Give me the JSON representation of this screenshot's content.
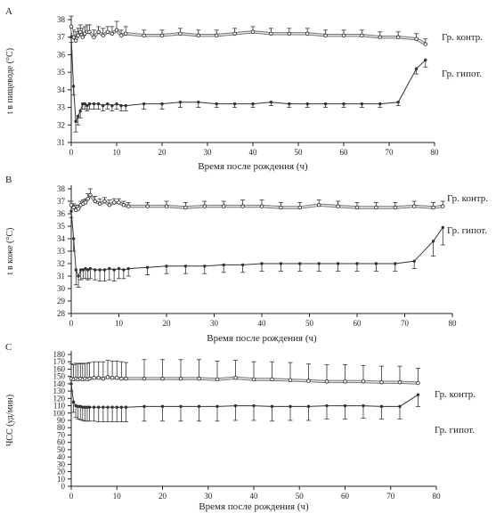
{
  "figure": {
    "panels": [
      {
        "letter": "A",
        "xlabel": "Время после рождения (ч)",
        "ylabel": "t в пищеводе (°С)"
      },
      {
        "letter": "B",
        "xlabel": "Время после рождения (ч)",
        "ylabel": "t в коже (°С)"
      },
      {
        "letter": "C",
        "xlabel": "Время после рождения (ч)",
        "ylabel": "ЧСС (уд/мин)"
      }
    ]
  },
  "colors": {
    "axis": "#222222",
    "hypo_series": "#333333",
    "control_outline": "#777777",
    "control_fill": "#e8e8e8"
  },
  "chart_data": [
    {
      "type": "line",
      "panel": "A",
      "xlabel": "Время после рождения (ч)",
      "ylabel": "t в пищеводе (°С)",
      "xlim": [
        0,
        80
      ],
      "ylim": [
        31,
        38
      ],
      "xticks": [
        0,
        10,
        20,
        30,
        40,
        50,
        60,
        70,
        80
      ],
      "yticks": [
        31,
        32,
        33,
        34,
        35,
        36,
        37,
        38
      ],
      "grid": false,
      "series": [
        {
          "name": "Гр. контр.",
          "style": "open-double",
          "x": [
            0,
            0.5,
            1,
            1.5,
            2,
            2.5,
            3,
            3.5,
            4,
            5,
            6,
            7,
            8,
            9,
            10,
            11,
            12,
            16,
            20,
            24,
            28,
            32,
            36,
            40,
            44,
            48,
            52,
            56,
            60,
            64,
            68,
            72,
            76,
            78
          ],
          "y": [
            37.6,
            37.0,
            36.8,
            37.1,
            37.3,
            37.0,
            37.2,
            37.3,
            37.3,
            37.0,
            37.3,
            37.1,
            37.3,
            37.2,
            37.4,
            37.1,
            37.2,
            37.1,
            37.1,
            37.2,
            37.1,
            37.1,
            37.2,
            37.3,
            37.2,
            37.2,
            37.2,
            37.1,
            37.1,
            37.1,
            37.0,
            37.0,
            36.9,
            36.6
          ],
          "err": [
            0.6,
            0.4,
            0.5,
            0.4,
            0.4,
            0.5,
            0.4,
            0.4,
            0.4,
            0.4,
            0.3,
            0.4,
            0.3,
            0.4,
            0.5,
            0.3,
            0.4,
            0.3,
            0.3,
            0.3,
            0.3,
            0.3,
            0.3,
            0.3,
            0.3,
            0.3,
            0.3,
            0.3,
            0.3,
            0.3,
            0.3,
            0.3,
            0.3,
            0.3
          ]
        },
        {
          "name": "Гр. гипот.",
          "style": "filled",
          "x": [
            0,
            0.5,
            1,
            1.5,
            2,
            2.5,
            3,
            3.5,
            4,
            5,
            6,
            7,
            8,
            9,
            10,
            11,
            12,
            16,
            20,
            24,
            28,
            32,
            36,
            40,
            44,
            48,
            52,
            56,
            60,
            64,
            68,
            72,
            76,
            78
          ],
          "y": [
            37.0,
            34.2,
            32.2,
            32.5,
            32.8,
            33.2,
            33.2,
            33.1,
            33.2,
            33.2,
            33.2,
            33.1,
            33.2,
            33.1,
            33.2,
            33.1,
            33.1,
            33.2,
            33.2,
            33.3,
            33.3,
            33.2,
            33.2,
            33.2,
            33.3,
            33.2,
            33.2,
            33.2,
            33.2,
            33.2,
            33.2,
            33.3,
            35.2,
            35.7
          ],
          "err": [
            0.3,
            0.5,
            0.6,
            0.5,
            0.4,
            0.3,
            0.3,
            0.3,
            0.3,
            0.3,
            0.3,
            0.3,
            0.3,
            0.3,
            0.3,
            0.3,
            0.3,
            0.3,
            0.3,
            0.3,
            0.3,
            0.2,
            0.2,
            0.2,
            0.2,
            0.2,
            0.2,
            0.2,
            0.2,
            0.2,
            0.2,
            0.2,
            0.3,
            0.4
          ]
        }
      ]
    },
    {
      "type": "line",
      "panel": "B",
      "xlabel": "Время после рождения (ч)",
      "ylabel": "t в коже (°С)",
      "xlim": [
        0,
        80
      ],
      "ylim": [
        28,
        38
      ],
      "xticks": [
        0,
        10,
        20,
        30,
        40,
        50,
        60,
        70,
        80
      ],
      "yticks": [
        28,
        29,
        30,
        31,
        32,
        33,
        34,
        35,
        36,
        37,
        38
      ],
      "grid": false,
      "series": [
        {
          "name": "Гр. контр.",
          "style": "open-double",
          "x": [
            0,
            0.5,
            1,
            1.5,
            2,
            2.5,
            3,
            3.5,
            4,
            5,
            6,
            7,
            8,
            9,
            10,
            11,
            12,
            16,
            20,
            24,
            28,
            32,
            36,
            40,
            44,
            48,
            52,
            56,
            60,
            64,
            68,
            72,
            76,
            78
          ],
          "y": [
            36.7,
            36.5,
            36.3,
            36.4,
            36.7,
            36.8,
            36.9,
            37.2,
            37.5,
            37.0,
            36.8,
            37.0,
            36.7,
            36.9,
            36.9,
            36.7,
            36.6,
            36.6,
            36.6,
            36.5,
            36.6,
            36.6,
            36.6,
            36.6,
            36.5,
            36.5,
            36.7,
            36.6,
            36.5,
            36.5,
            36.5,
            36.6,
            36.5,
            36.6
          ],
          "err": [
            0.3,
            0.3,
            0.4,
            0.3,
            0.3,
            0.3,
            0.3,
            0.4,
            0.5,
            0.4,
            0.4,
            0.3,
            0.4,
            0.3,
            0.3,
            0.3,
            0.3,
            0.3,
            0.4,
            0.4,
            0.4,
            0.4,
            0.5,
            0.5,
            0.4,
            0.4,
            0.4,
            0.4,
            0.4,
            0.4,
            0.4,
            0.4,
            0.4,
            0.4
          ]
        },
        {
          "name": "Гр. гипот.",
          "style": "filled",
          "x": [
            0,
            0.5,
            1,
            1.5,
            2,
            2.5,
            3,
            3.5,
            4,
            5,
            6,
            7,
            8,
            9,
            10,
            11,
            12,
            16,
            20,
            24,
            28,
            32,
            36,
            40,
            44,
            48,
            52,
            56,
            60,
            64,
            68,
            72,
            76,
            78
          ],
          "y": [
            36.2,
            34.0,
            31.5,
            31.0,
            31.5,
            31.5,
            31.6,
            31.5,
            31.6,
            31.5,
            31.5,
            31.5,
            31.6,
            31.5,
            31.6,
            31.5,
            31.6,
            31.7,
            31.8,
            31.8,
            31.8,
            31.9,
            31.9,
            32.0,
            32.0,
            32.0,
            32.0,
            32.0,
            32.0,
            32.0,
            32.0,
            32.2,
            33.8,
            34.9
          ],
          "err": [
            0.5,
            1.0,
            1.2,
            0.9,
            0.8,
            0.7,
            0.8,
            0.8,
            0.8,
            0.8,
            0.9,
            0.9,
            0.9,
            0.9,
            0.8,
            0.7,
            0.6,
            0.6,
            0.6,
            0.6,
            0.6,
            0.6,
            0.6,
            0.6,
            0.6,
            0.6,
            0.6,
            0.6,
            0.6,
            0.6,
            0.6,
            0.6,
            1.2,
            1.4
          ]
        }
      ]
    },
    {
      "type": "line",
      "panel": "C",
      "xlabel": "Время после рождения (ч)",
      "ylabel": "ЧСС (уд/мин)",
      "xlim": [
        0,
        80
      ],
      "ylim": [
        0,
        180
      ],
      "xticks": [
        0,
        10,
        20,
        30,
        40,
        50,
        60,
        70,
        80
      ],
      "yticks": [
        0,
        10,
        20,
        30,
        40,
        50,
        60,
        70,
        80,
        90,
        100,
        110,
        120,
        130,
        140,
        150,
        160,
        170,
        180
      ],
      "grid": false,
      "series": [
        {
          "name": "Гр. контр.",
          "style": "open-double",
          "x": [
            0,
            0.5,
            1,
            1.5,
            2,
            2.5,
            3,
            3.5,
            4,
            5,
            6,
            7,
            8,
            9,
            10,
            11,
            12,
            16,
            20,
            24,
            28,
            32,
            36,
            40,
            44,
            48,
            52,
            56,
            60,
            64,
            68,
            72,
            76
          ],
          "y": [
            147,
            146,
            147,
            146,
            147,
            146,
            147,
            146,
            147,
            148,
            148,
            147,
            149,
            148,
            148,
            147,
            147,
            147,
            147,
            147,
            147,
            146,
            148,
            146,
            146,
            145,
            144,
            143,
            143,
            143,
            142,
            142,
            141
          ],
          "err": [
            20,
            20,
            21,
            21,
            21,
            21,
            21,
            22,
            22,
            22,
            22,
            23,
            23,
            23,
            23,
            23,
            22,
            26,
            26,
            26,
            26,
            25,
            24,
            24,
            24,
            24,
            23,
            23,
            23,
            22,
            22,
            22,
            20
          ]
        },
        {
          "name": "Гр. гипот.",
          "style": "filled",
          "x": [
            0,
            0.5,
            1,
            1.5,
            2,
            2.5,
            3,
            3.5,
            4,
            5,
            6,
            7,
            8,
            9,
            10,
            11,
            12,
            16,
            20,
            24,
            28,
            32,
            36,
            40,
            44,
            48,
            52,
            56,
            60,
            64,
            68,
            72,
            76
          ],
          "y": [
            140,
            115,
            110,
            109,
            109,
            108,
            108,
            108,
            108,
            108,
            108,
            108,
            108,
            108,
            108,
            108,
            108,
            109,
            109,
            109,
            109,
            109,
            110,
            110,
            109,
            109,
            109,
            110,
            110,
            110,
            109,
            109,
            125
          ],
          "err": [
            10,
            14,
            16,
            17,
            18,
            18,
            19,
            19,
            19,
            19,
            20,
            20,
            20,
            20,
            20,
            20,
            20,
            20,
            20,
            20,
            20,
            20,
            20,
            20,
            20,
            19,
            19,
            18,
            18,
            17,
            17,
            17,
            16
          ]
        }
      ]
    }
  ]
}
